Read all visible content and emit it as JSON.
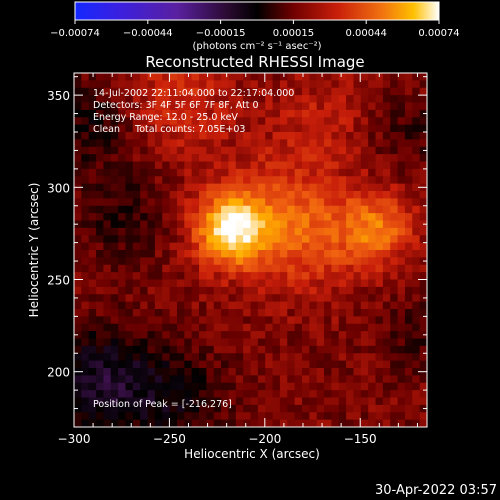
{
  "colorbar": {
    "ticks": [
      "-0.00074",
      "-0.00044",
      "-0.00015",
      "0.00015",
      "0.00044",
      "0.00074"
    ],
    "unit": "(photons cm⁻² s⁻¹ asec⁻²)"
  },
  "title": "Reconstructed RHESSI Image",
  "annotations": [
    "14-Jul-2002 22:11:04.000 to 22:17:04.000",
    "Detectors: 3F 4F 5F 6F 7F 8F, Att 0",
    "Energy Range: 12.0 - 25.0 keV",
    "Clean     Total counts: 7.05E+03"
  ],
  "peak_text": "Position of Peak = [-216,276]",
  "timestamp": "30-Apr-2022 03:57",
  "chart_data": {
    "type": "heatmap",
    "title": "Reconstructed RHESSI Image",
    "xlabel": "Heliocentric X (arcsec)",
    "ylabel": "Heliocentric Y (arcsec)",
    "xlim": [
      -300,
      -115
    ],
    "ylim": [
      170,
      362
    ],
    "x_ticks": [
      -300,
      -250,
      -200,
      -150
    ],
    "x_tick_labels": [
      "−300",
      "−250",
      "−200",
      "−150"
    ],
    "y_ticks": [
      200,
      250,
      300,
      350
    ],
    "y_tick_labels": [
      "200",
      "250",
      "300",
      "350"
    ],
    "colorscale_range": [
      -0.00074,
      0.00074
    ],
    "colormap": [
      "#1428ff",
      "#5a20c8",
      "#3a1048",
      "#000000",
      "#6a0000",
      "#c81e0a",
      "#f06010",
      "#ffb000",
      "#ffffff"
    ],
    "peak": [
      -216,
      276
    ],
    "peak_value": 0.00074,
    "sources": [
      {
        "x": -218,
        "y": 277,
        "amplitude": 0.0006,
        "width": 13
      },
      {
        "x": -195,
        "y": 285,
        "amplitude": 0.00024,
        "width": 24
      },
      {
        "x": -140,
        "y": 278,
        "amplitude": 0.00034,
        "width": 13
      },
      {
        "x": -170,
        "y": 272,
        "amplitude": 0.00018,
        "width": 20
      },
      {
        "x": -248,
        "y": 348,
        "amplitude": 0.00018,
        "width": 22
      },
      {
        "x": -170,
        "y": 338,
        "amplitude": 0.00012,
        "width": 18
      },
      {
        "x": -285,
        "y": 195,
        "amplitude": -0.00032,
        "width": 20
      },
      {
        "x": -245,
        "y": 185,
        "amplitude": -0.0002,
        "width": 18
      },
      {
        "x": -290,
        "y": 335,
        "amplitude": -0.00018,
        "width": 18
      },
      {
        "x": -275,
        "y": 285,
        "amplitude": -0.00014,
        "width": 18
      },
      {
        "x": -125,
        "y": 330,
        "amplitude": -0.00012,
        "width": 14
      },
      {
        "x": -120,
        "y": 220,
        "amplitude": -0.00012,
        "width": 14
      }
    ]
  }
}
